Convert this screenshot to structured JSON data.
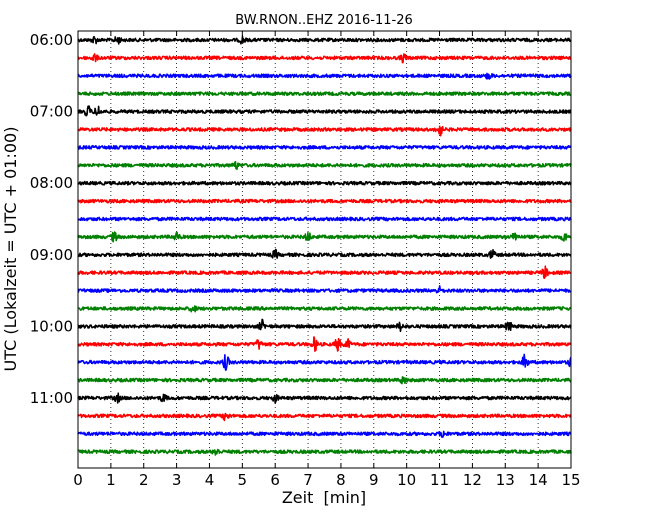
{
  "chart_data": {
    "type": "line",
    "title": "BW.RNON..EHZ 2016-11-26",
    "xlabel": "Zeit  [min]",
    "ylabel": "UTC (Lokalzeit = UTC + 01:00)",
    "xlim": [
      0,
      15
    ],
    "x_ticks": [
      "0",
      "1",
      "2",
      "3",
      "4",
      "5",
      "6",
      "7",
      "8",
      "9",
      "10",
      "11",
      "12",
      "13",
      "14",
      "15"
    ],
    "y_ticks": [
      "06:00",
      "07:00",
      "08:00",
      "09:00",
      "10:00",
      "11:00"
    ],
    "grid": "vertical dotted",
    "trace_interval_minutes": 15,
    "colors": [
      "#000000",
      "#ff0000",
      "#0000ff",
      "#008000"
    ],
    "traces": [
      {
        "start": "06:00",
        "color": "#000000"
      },
      {
        "start": "06:15",
        "color": "#ff0000"
      },
      {
        "start": "06:30",
        "color": "#0000ff"
      },
      {
        "start": "06:45",
        "color": "#008000"
      },
      {
        "start": "07:00",
        "color": "#000000"
      },
      {
        "start": "07:15",
        "color": "#ff0000"
      },
      {
        "start": "07:30",
        "color": "#0000ff"
      },
      {
        "start": "07:45",
        "color": "#008000"
      },
      {
        "start": "08:00",
        "color": "#000000"
      },
      {
        "start": "08:15",
        "color": "#ff0000"
      },
      {
        "start": "08:30",
        "color": "#0000ff"
      },
      {
        "start": "08:45",
        "color": "#008000"
      },
      {
        "start": "09:00",
        "color": "#000000"
      },
      {
        "start": "09:15",
        "color": "#ff0000"
      },
      {
        "start": "09:30",
        "color": "#0000ff"
      },
      {
        "start": "09:45",
        "color": "#008000"
      },
      {
        "start": "10:00",
        "color": "#000000"
      },
      {
        "start": "10:15",
        "color": "#ff0000"
      },
      {
        "start": "10:30",
        "color": "#0000ff"
      },
      {
        "start": "10:45",
        "color": "#008000"
      },
      {
        "start": "11:00",
        "color": "#000000"
      },
      {
        "start": "11:15",
        "color": "#ff0000"
      },
      {
        "start": "11:30",
        "color": "#0000ff"
      },
      {
        "start": "11:45",
        "color": "#008000"
      }
    ],
    "events": [
      {
        "trace": "06:00",
        "minute": 0.5,
        "amplitude": 1.5
      },
      {
        "trace": "06:00",
        "minute": 1.2,
        "amplitude": 1.6
      },
      {
        "trace": "06:00",
        "minute": 5.0,
        "amplitude": 1.4
      },
      {
        "trace": "06:15",
        "minute": 0.5,
        "amplitude": 1.6
      },
      {
        "trace": "06:15",
        "minute": 9.9,
        "amplitude": 1.8
      },
      {
        "trace": "06:30",
        "minute": 12.5,
        "amplitude": 1.4
      },
      {
        "trace": "07:00",
        "minute": 0.3,
        "amplitude": 2.5
      },
      {
        "trace": "07:00",
        "minute": 0.6,
        "amplitude": 2.3
      },
      {
        "trace": "07:15",
        "minute": 11.0,
        "amplitude": 3.0
      },
      {
        "trace": "07:45",
        "minute": 4.8,
        "amplitude": 1.6
      },
      {
        "trace": "08:45",
        "minute": 1.1,
        "amplitude": 2.0
      },
      {
        "trace": "08:45",
        "minute": 3.0,
        "amplitude": 1.9
      },
      {
        "trace": "08:45",
        "minute": 7.0,
        "amplitude": 1.9
      },
      {
        "trace": "08:45",
        "minute": 13.3,
        "amplitude": 2.0
      },
      {
        "trace": "08:45",
        "minute": 14.8,
        "amplitude": 1.8
      },
      {
        "trace": "09:00",
        "minute": 6.0,
        "amplitude": 1.8
      },
      {
        "trace": "09:00",
        "minute": 12.6,
        "amplitude": 2.0
      },
      {
        "trace": "09:15",
        "minute": 14.2,
        "amplitude": 2.6
      },
      {
        "trace": "09:30",
        "minute": 11.0,
        "amplitude": 1.5
      },
      {
        "trace": "09:45",
        "minute": 3.5,
        "amplitude": 1.7
      },
      {
        "trace": "10:00",
        "minute": 5.6,
        "amplitude": 2.5
      },
      {
        "trace": "10:00",
        "minute": 9.8,
        "amplitude": 1.8
      },
      {
        "trace": "10:00",
        "minute": 13.1,
        "amplitude": 2.6
      },
      {
        "trace": "10:15",
        "minute": 5.5,
        "amplitude": 2.0
      },
      {
        "trace": "10:15",
        "minute": 7.2,
        "amplitude": 3.0
      },
      {
        "trace": "10:15",
        "minute": 7.9,
        "amplitude": 2.8
      },
      {
        "trace": "10:15",
        "minute": 8.2,
        "amplitude": 2.0
      },
      {
        "trace": "10:30",
        "minute": 4.5,
        "amplitude": 3.3
      },
      {
        "trace": "10:30",
        "minute": 13.6,
        "amplitude": 3.2
      },
      {
        "trace": "10:30",
        "minute": 15.0,
        "amplitude": 1.8
      },
      {
        "trace": "10:45",
        "minute": 9.9,
        "amplitude": 1.8
      },
      {
        "trace": "11:00",
        "minute": 1.2,
        "amplitude": 1.7
      },
      {
        "trace": "11:00",
        "minute": 2.6,
        "amplitude": 1.6
      },
      {
        "trace": "11:00",
        "minute": 6.0,
        "amplitude": 1.6
      },
      {
        "trace": "11:15",
        "minute": 4.5,
        "amplitude": 1.9
      },
      {
        "trace": "11:30",
        "minute": 11.1,
        "amplitude": 1.5
      },
      {
        "trace": "11:45",
        "minute": 4.2,
        "amplitude": 1.8
      }
    ]
  }
}
